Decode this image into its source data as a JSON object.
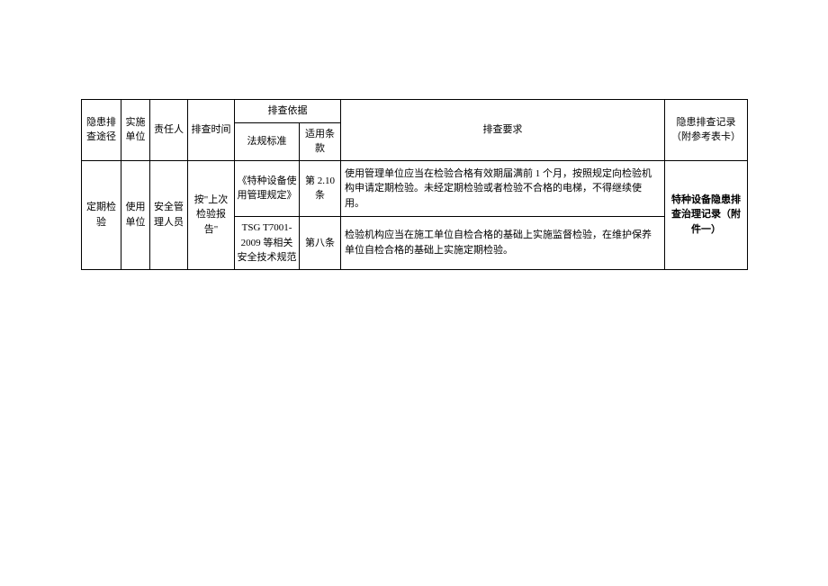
{
  "table": {
    "headers": {
      "col1": "隐患排查途径",
      "col2": "实施单位",
      "col3": "责任人",
      "col4": "排查时间",
      "col5_group": "排查依据",
      "col5a": "法规标准",
      "col5b": "适用条款",
      "col6": "排查要求",
      "col7": "隐患排查记录（附参考表卡）"
    },
    "rows": [
      {
        "route": "定期检验",
        "unit": "使用单位",
        "responsible": "安全管理人员",
        "time": "按\"上次检验报告\"",
        "sub": [
          {
            "regulation": "《特种设备使用管理规定》",
            "clause": "第 2.10条",
            "requirement": "使用管理单位应当在检验合格有效期届满前 1 个月，按照规定向检验机构申请定期检验。未经定期检验或者检验不合格的电梯，不得继续使用。"
          },
          {
            "regulation": "TSG T7001-2009 等相关安全技术规范",
            "clause": "第八条",
            "requirement": "检验机构应当在施工单位自检合格的基础上实施监督检验，在维护保养单位自检合格的基础上实施定期检验。"
          }
        ],
        "record": "特种设备隐患排查治理记录（附件一）"
      }
    ],
    "style": {
      "border_color": "#000000",
      "background_color": "#ffffff",
      "font_size": 11,
      "text_color": "#000000",
      "cell_padding": 4,
      "line_height": 1.5
    }
  }
}
